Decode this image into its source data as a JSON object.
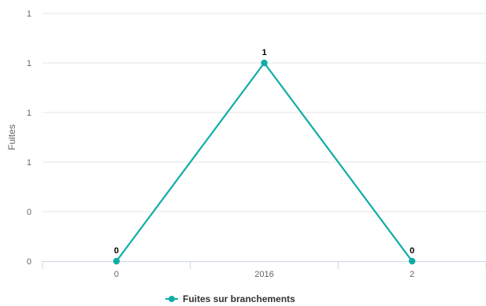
{
  "chart_data": {
    "type": "line",
    "title": "",
    "xlabel": "",
    "ylabel": "Fuites",
    "categories": [
      "0",
      "2016",
      "2"
    ],
    "y_tick_labels": [
      "0",
      "0",
      "1",
      "1",
      "1",
      "1"
    ],
    "ylim": [
      0,
      1.25
    ],
    "grid": true,
    "legend_position": "bottom-center",
    "series": [
      {
        "name": "Fuites sur branchements",
        "values": [
          0,
          1,
          0
        ],
        "data_labels": [
          "0",
          "1",
          "0"
        ],
        "color": "#10ada6"
      }
    ]
  }
}
